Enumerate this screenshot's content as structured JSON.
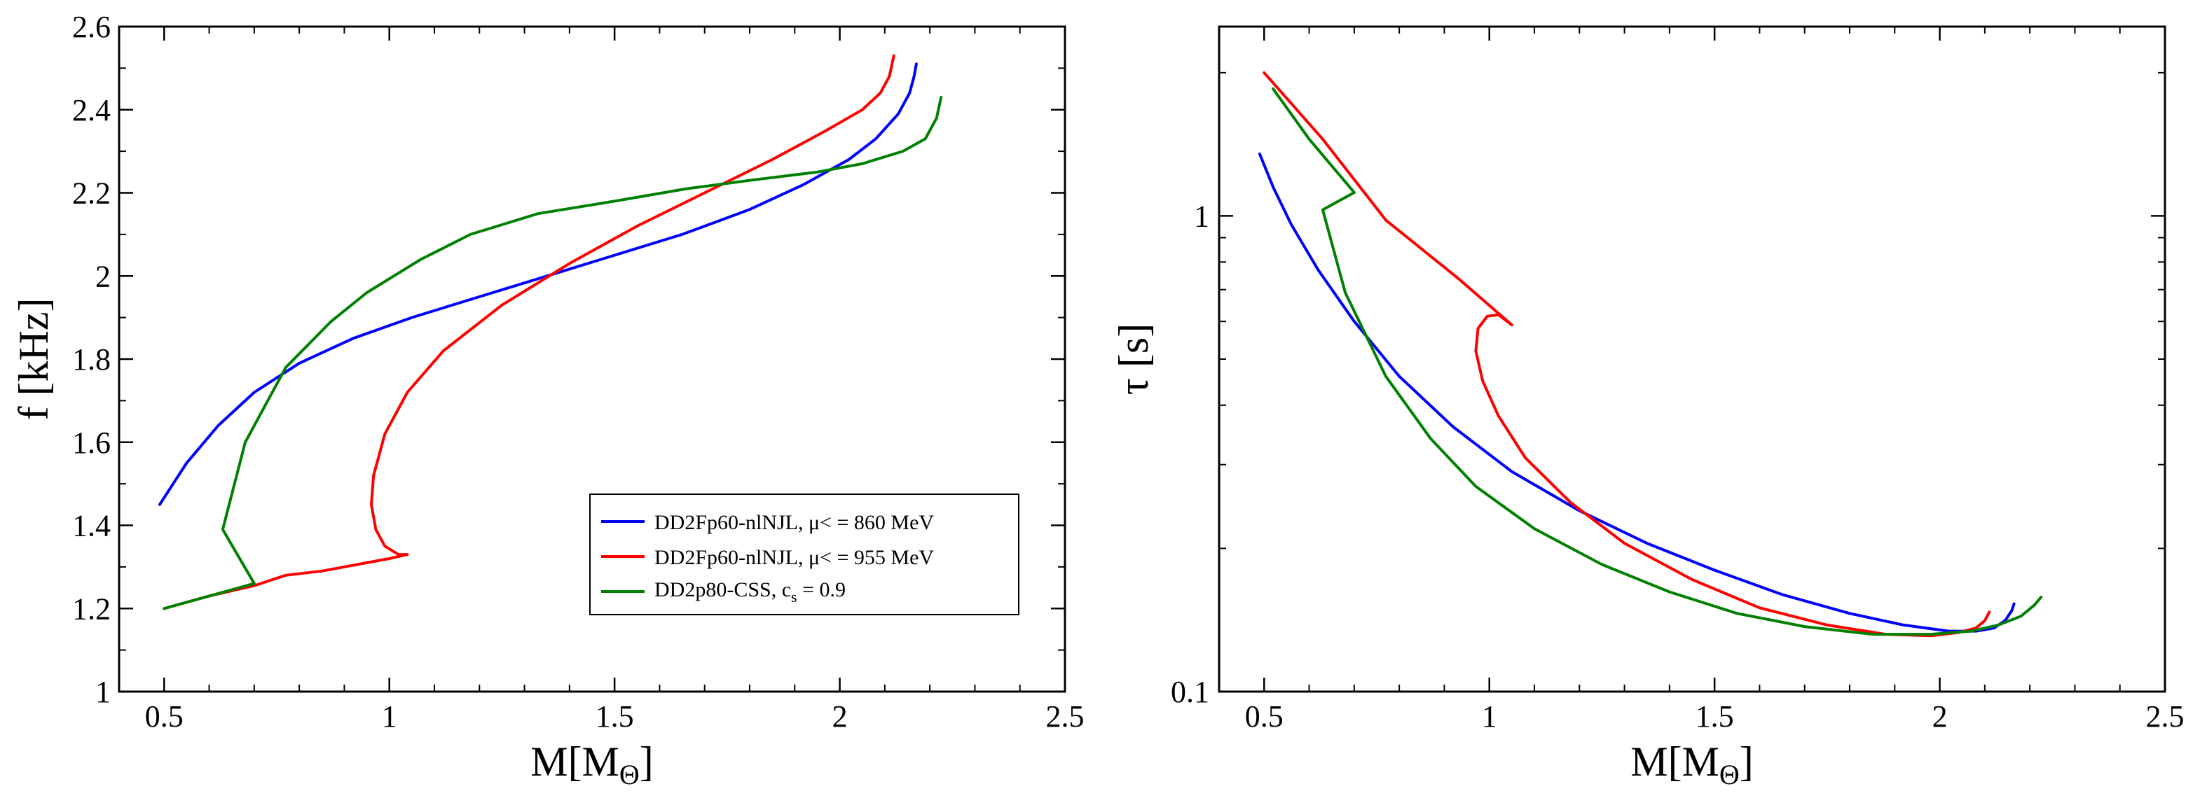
{
  "chart_data": [
    {
      "type": "line",
      "title": "",
      "xlabel": "M[M",
      "xlabel_sub": "Θ",
      "xlabel_close": "]",
      "ylabel": "f [kHz]",
      "xlim": [
        0.4,
        2.5
      ],
      "ylim": [
        1.0,
        2.6
      ],
      "xticks": [
        0.5,
        1,
        1.5,
        2,
        2.5
      ],
      "xtick_labels": [
        "0.5",
        "1",
        "1.5",
        "2",
        "2.5"
      ],
      "yticks": [
        1,
        1.2,
        1.4,
        1.6,
        1.8,
        2,
        2.2,
        2.4,
        2.6
      ],
      "ytick_labels": [
        "1",
        "1.2",
        "1.4",
        "1.6",
        "1.8",
        "2",
        "2.2",
        "2.4",
        "2.6"
      ],
      "legend": {
        "position": "lower-right",
        "entries": [
          {
            "label": "DD2Fp60-nlNJL, μ< = 860 MeV",
            "color": "#0000ff"
          },
          {
            "label": "DD2Fp60-nlNJL, μ< = 955 MeV",
            "color": "#ff0000"
          },
          {
            "label_main": "DD2p80-CSS, c",
            "label_sub": "s",
            "label_tail": " = 0.9",
            "color": "#008000"
          }
        ]
      },
      "series": [
        {
          "name": "DD2Fp60-nlNJL, μ< = 860 MeV",
          "color": "#0000ff",
          "x": [
            0.49,
            0.55,
            0.62,
            0.7,
            0.8,
            0.92,
            1.05,
            1.2,
            1.35,
            1.5,
            1.65,
            1.8,
            1.92,
            2.02,
            2.08,
            2.13,
            2.155,
            2.165,
            2.17
          ],
          "y": [
            1.45,
            1.55,
            1.64,
            1.72,
            1.79,
            1.85,
            1.9,
            1.95,
            2.0,
            2.05,
            2.1,
            2.16,
            2.22,
            2.28,
            2.33,
            2.39,
            2.44,
            2.48,
            2.51
          ]
        },
        {
          "name": "DD2Fp60-nlNJL, μ< = 955 MeV",
          "color": "#ff0000",
          "x": [
            0.5,
            0.6,
            0.7,
            0.77,
            0.85,
            0.95,
            1.0,
            1.04,
            1.02,
            0.99,
            0.97,
            0.96,
            0.965,
            0.99,
            1.04,
            1.12,
            1.25,
            1.4,
            1.55,
            1.7,
            1.85,
            1.97,
            2.05,
            2.09,
            2.11,
            2.12
          ],
          "y": [
            1.2,
            1.23,
            1.255,
            1.28,
            1.29,
            1.31,
            1.32,
            1.33,
            1.33,
            1.35,
            1.39,
            1.45,
            1.52,
            1.62,
            1.72,
            1.82,
            1.93,
            2.03,
            2.12,
            2.2,
            2.28,
            2.35,
            2.4,
            2.44,
            2.48,
            2.53
          ]
        },
        {
          "name": "DD2p80-CSS, cs = 0.9",
          "color": "#008000",
          "x": [
            0.5,
            0.6,
            0.7,
            0.63,
            0.68,
            0.77,
            0.87,
            0.95,
            1.07,
            1.18,
            1.33,
            1.5,
            1.66,
            1.8,
            1.95,
            2.05,
            2.14,
            2.19,
            2.215,
            2.225
          ],
          "y": [
            1.2,
            1.23,
            1.26,
            1.39,
            1.6,
            1.78,
            1.89,
            1.96,
            2.04,
            2.1,
            2.15,
            2.18,
            2.21,
            2.23,
            2.25,
            2.27,
            2.3,
            2.33,
            2.38,
            2.43
          ]
        }
      ]
    },
    {
      "type": "line",
      "title": "",
      "xlabel": "M[M",
      "xlabel_sub": "Θ",
      "xlabel_close": "]",
      "ylabel": "τ [s]",
      "yscale": "log",
      "xlim": [
        0.4,
        2.5
      ],
      "ylim": [
        0.1,
        2.5
      ],
      "xticks": [
        0.5,
        1,
        1.5,
        2,
        2.5
      ],
      "xtick_labels": [
        "0.5",
        "1",
        "1.5",
        "2",
        "2.5"
      ],
      "yticks_major": [
        0.1,
        1
      ],
      "ytick_labels": [
        "0.1",
        "1"
      ],
      "yticks_minor": [
        0.2,
        0.3,
        0.4,
        0.5,
        0.6,
        0.7,
        0.8,
        0.9,
        2
      ],
      "series": [
        {
          "name": "DD2Fp60-nlNJL, μ< = 860 MeV",
          "color": "#0000ff",
          "x": [
            0.49,
            0.52,
            0.56,
            0.62,
            0.7,
            0.8,
            0.92,
            1.05,
            1.2,
            1.35,
            1.5,
            1.65,
            1.8,
            1.92,
            2.02,
            2.08,
            2.12,
            2.145,
            2.16,
            2.165
          ],
          "y": [
            1.35,
            1.15,
            0.96,
            0.77,
            0.6,
            0.46,
            0.36,
            0.29,
            0.24,
            0.205,
            0.18,
            0.16,
            0.146,
            0.138,
            0.134,
            0.134,
            0.136,
            0.141,
            0.148,
            0.153
          ]
        },
        {
          "name": "DD2Fp60-nlNJL, μ< = 955 MeV",
          "color": "#ff0000",
          "x": [
            0.5,
            0.63,
            0.77,
            0.93,
            1.05,
            1.02,
            0.995,
            0.975,
            0.97,
            0.985,
            1.02,
            1.08,
            1.18,
            1.3,
            1.45,
            1.6,
            1.75,
            1.88,
            1.98,
            2.04,
            2.08,
            2.1,
            2.11
          ],
          "y": [
            2.0,
            1.45,
            0.98,
            0.74,
            0.59,
            0.62,
            0.615,
            0.58,
            0.52,
            0.45,
            0.38,
            0.31,
            0.25,
            0.205,
            0.172,
            0.15,
            0.138,
            0.132,
            0.131,
            0.133,
            0.136,
            0.141,
            0.147
          ]
        },
        {
          "name": "DD2p80-CSS, cs = 0.9",
          "color": "#008000",
          "x": [
            0.52,
            0.6,
            0.7,
            0.63,
            0.68,
            0.77,
            0.87,
            0.97,
            1.1,
            1.25,
            1.4,
            1.55,
            1.7,
            1.85,
            1.98,
            2.07,
            2.13,
            2.18,
            2.21,
            2.225
          ],
          "y": [
            1.85,
            1.45,
            1.12,
            1.03,
            0.69,
            0.46,
            0.34,
            0.27,
            0.22,
            0.185,
            0.162,
            0.146,
            0.137,
            0.132,
            0.132,
            0.134,
            0.138,
            0.144,
            0.152,
            0.158
          ]
        }
      ]
    }
  ]
}
